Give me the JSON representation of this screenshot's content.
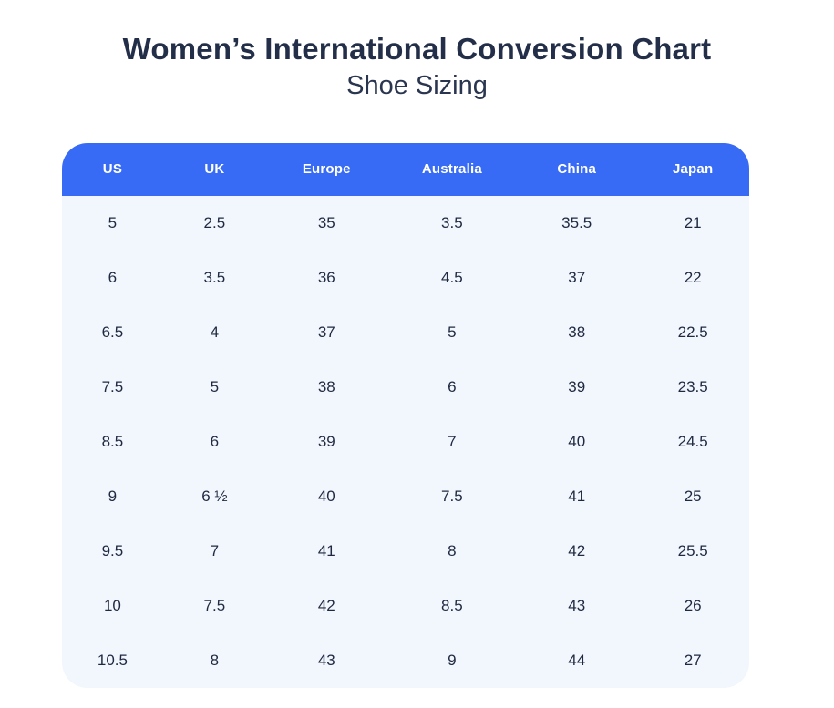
{
  "page": {
    "title": "Women’s International Conversion Chart",
    "subtitle": "Shoe Sizing"
  },
  "colors": {
    "header_background": "#386BF5",
    "header_text": "#FFFFFF",
    "body_background": "#F2F6FD",
    "cell_text": "#1F2940",
    "title_text": "#232E49"
  },
  "chart_data": {
    "type": "table",
    "title": "Women’s International Conversion Chart",
    "subtitle": "Shoe Sizing",
    "columns": [
      "US",
      "UK",
      "Europe",
      "Australia",
      "China",
      "Japan"
    ],
    "rows": [
      [
        "5",
        "2.5",
        "35",
        "3.5",
        "35.5",
        "21"
      ],
      [
        "6",
        "3.5",
        "36",
        "4.5",
        "37",
        "22"
      ],
      [
        "6.5",
        "4",
        "37",
        "5",
        "38",
        "22.5"
      ],
      [
        "7.5",
        "5",
        "38",
        "6",
        "39",
        "23.5"
      ],
      [
        "8.5",
        "6",
        "39",
        "7",
        "40",
        "24.5"
      ],
      [
        "9",
        "6 ½",
        "40",
        "7.5",
        "41",
        "25"
      ],
      [
        "9.5",
        "7",
        "41",
        "8",
        "42",
        "25.5"
      ],
      [
        "10",
        "7.5",
        "42",
        "8.5",
        "43",
        "26"
      ],
      [
        "10.5",
        "8",
        "43",
        "9",
        "44",
        "27"
      ]
    ]
  }
}
